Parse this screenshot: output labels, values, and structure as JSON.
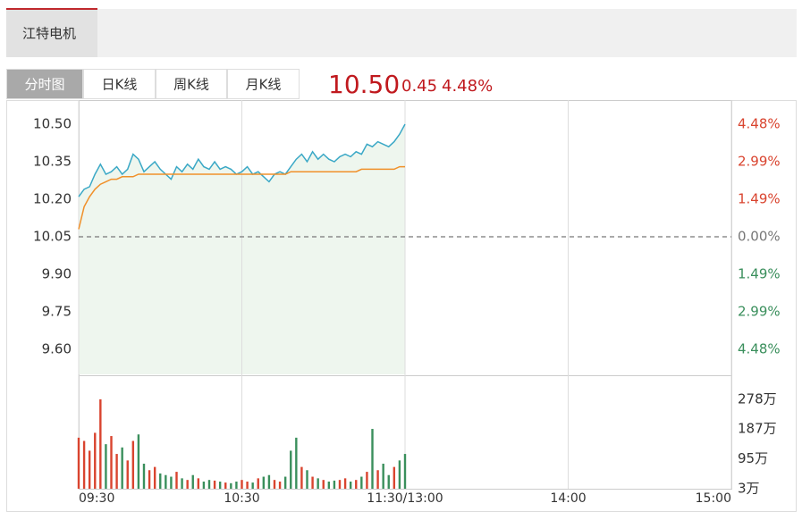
{
  "header": {
    "tab": "江特电机"
  },
  "tabs": [
    "分时图",
    "日K线",
    "周K线",
    "月K线"
  ],
  "quote": {
    "price": "10.50",
    "change": "0.45",
    "change_pct": "4.48%"
  },
  "chart_data": [
    {
      "type": "line",
      "xlim": [
        0,
        240
      ],
      "ylim": [
        9.5,
        10.6
      ],
      "yticks": [
        {
          "value": 10.5,
          "label": "10.50"
        },
        10.35,
        {
          "value": 10.2,
          "label": "10.20"
        },
        10.05,
        {
          "value": 9.9,
          "label": "9.90"
        },
        9.75,
        {
          "value": 9.6,
          "label": "9.60"
        }
      ],
      "y2lim": [
        -5.47,
        5.47
      ],
      "y2ticks": [
        {
          "value": 4.48,
          "label": "4.48%"
        },
        {
          "value": 2.99,
          "label": "2.99%"
        },
        {
          "value": 1.49,
          "label": "1.49%"
        },
        {
          "value": 0,
          "label": "0.00%"
        },
        {
          "value": -1.49,
          "label": "1.49%"
        },
        {
          "value": -2.99,
          "label": "2.99%"
        },
        {
          "value": -4.48,
          "label": "4.48%"
        }
      ],
      "up_color": "#d9442f",
      "down_color": "#3a8f5c",
      "flat_color": "#777777",
      "area_color": "#eef6ee",
      "series": [
        {
          "color": "#3aa8c6",
          "x": [
            0,
            2,
            4,
            6,
            8,
            10,
            12,
            14,
            16,
            18,
            20,
            22,
            24,
            26,
            28,
            30,
            32,
            34,
            36,
            38,
            40,
            42,
            44,
            46,
            48,
            50,
            52,
            54,
            56,
            58,
            60,
            62,
            64,
            66,
            68,
            70,
            72,
            74,
            76,
            78,
            80,
            82,
            84,
            86,
            88,
            90,
            92,
            94,
            96,
            98,
            100,
            102,
            104,
            106,
            108,
            110,
            112,
            114,
            116,
            118,
            120
          ],
          "values": [
            10.21,
            10.24,
            10.25,
            10.3,
            10.34,
            10.3,
            10.31,
            10.33,
            10.3,
            10.32,
            10.38,
            10.36,
            10.31,
            10.33,
            10.35,
            10.32,
            10.3,
            10.28,
            10.33,
            10.31,
            10.34,
            10.32,
            10.36,
            10.33,
            10.32,
            10.35,
            10.32,
            10.33,
            10.32,
            10.3,
            10.31,
            10.33,
            10.3,
            10.31,
            10.29,
            10.27,
            10.3,
            10.31,
            10.3,
            10.33,
            10.36,
            10.38,
            10.35,
            10.39,
            10.36,
            10.38,
            10.36,
            10.35,
            10.37,
            10.38,
            10.37,
            10.39,
            10.38,
            10.42,
            10.41,
            10.43,
            10.42,
            10.41,
            10.43,
            10.46,
            10.5
          ]
        },
        {
          "color": "#f0902a",
          "x": [
            0,
            2,
            4,
            6,
            8,
            10,
            12,
            14,
            16,
            18,
            20,
            22,
            24,
            26,
            28,
            30,
            32,
            34,
            36,
            38,
            40,
            42,
            44,
            46,
            48,
            50,
            52,
            54,
            56,
            58,
            60,
            62,
            64,
            66,
            68,
            70,
            72,
            74,
            76,
            78,
            80,
            82,
            84,
            86,
            88,
            90,
            92,
            94,
            96,
            98,
            100,
            102,
            104,
            106,
            108,
            110,
            112,
            114,
            116,
            118,
            120
          ],
          "values": [
            10.08,
            10.17,
            10.21,
            10.24,
            10.26,
            10.27,
            10.28,
            10.28,
            10.29,
            10.29,
            10.29,
            10.3,
            10.3,
            10.3,
            10.3,
            10.3,
            10.3,
            10.3,
            10.3,
            10.3,
            10.3,
            10.3,
            10.3,
            10.3,
            10.3,
            10.3,
            10.3,
            10.3,
            10.3,
            10.3,
            10.3,
            10.3,
            10.3,
            10.3,
            10.3,
            10.3,
            10.3,
            10.3,
            10.3,
            10.31,
            10.31,
            10.31,
            10.31,
            10.31,
            10.31,
            10.31,
            10.31,
            10.31,
            10.31,
            10.31,
            10.31,
            10.31,
            10.32,
            10.32,
            10.32,
            10.32,
            10.32,
            10.32,
            10.32,
            10.33,
            10.33
          ]
        }
      ]
    },
    {
      "type": "bar",
      "xlim": [
        0,
        240
      ],
      "xticks": [
        {
          "value": 0,
          "label": "09:30"
        },
        {
          "value": 60,
          "label": "10:30"
        },
        {
          "value": 120,
          "label": "11:30/13:00"
        },
        {
          "value": 180,
          "label": "14:00"
        },
        {
          "value": 240,
          "label": "15:00"
        }
      ],
      "ylim": [
        3,
        352
      ],
      "yticks": [
        {
          "value": 278,
          "label": "278万"
        },
        {
          "value": 187,
          "label": "187万"
        },
        {
          "value": 95,
          "label": "95万"
        },
        {
          "value": 3,
          "label": "3万"
        }
      ],
      "x": [
        0,
        2,
        4,
        6,
        8,
        10,
        12,
        14,
        16,
        18,
        20,
        22,
        24,
        26,
        28,
        30,
        32,
        34,
        36,
        38,
        40,
        42,
        44,
        46,
        48,
        50,
        52,
        54,
        56,
        58,
        60,
        62,
        64,
        66,
        68,
        70,
        72,
        74,
        76,
        78,
        80,
        82,
        84,
        86,
        88,
        90,
        92,
        94,
        96,
        98,
        100,
        102,
        104,
        106,
        108,
        110,
        112,
        114,
        116,
        118,
        120
      ],
      "values": [
        160,
        150,
        120,
        175,
        278,
        140,
        165,
        110,
        130,
        90,
        150,
        170,
        80,
        60,
        70,
        50,
        45,
        40,
        55,
        35,
        30,
        45,
        35,
        25,
        30,
        28,
        25,
        22,
        20,
        25,
        30,
        25,
        22,
        35,
        40,
        45,
        30,
        25,
        40,
        120,
        160,
        70,
        60,
        40,
        35,
        30,
        25,
        28,
        30,
        35,
        25,
        30,
        40,
        55,
        187,
        60,
        80,
        45,
        70,
        90,
        110
      ],
      "colors": [
        "#d9442f",
        "#d9442f",
        "#d9442f",
        "#d9442f",
        "#d9442f",
        "#3a8f5c",
        "#d9442f",
        "#d9442f",
        "#3a8f5c",
        "#d9442f",
        "#d9442f",
        "#3a8f5c",
        "#3a8f5c",
        "#d9442f",
        "#d9442f",
        "#3a8f5c",
        "#3a8f5c",
        "#3a8f5c",
        "#d9442f",
        "#3a8f5c",
        "#d9442f",
        "#3a8f5c",
        "#d9442f",
        "#3a8f5c",
        "#3a8f5c",
        "#d9442f",
        "#3a8f5c",
        "#d9442f",
        "#3a8f5c",
        "#3a8f5c",
        "#d9442f",
        "#d9442f",
        "#3a8f5c",
        "#d9442f",
        "#3a8f5c",
        "#3a8f5c",
        "#d9442f",
        "#d9442f",
        "#3a8f5c",
        "#3a8f5c",
        "#3a8f5c",
        "#d9442f",
        "#3a8f5c",
        "#d9442f",
        "#3a8f5c",
        "#d9442f",
        "#3a8f5c",
        "#3a8f5c",
        "#d9442f",
        "#d9442f",
        "#3a8f5c",
        "#d9442f",
        "#3a8f5c",
        "#d9442f",
        "#3a8f5c",
        "#d9442f",
        "#3a8f5c",
        "#3a8f5c",
        "#d9442f",
        "#3a8f5c",
        "#3a8f5c"
      ]
    }
  ]
}
